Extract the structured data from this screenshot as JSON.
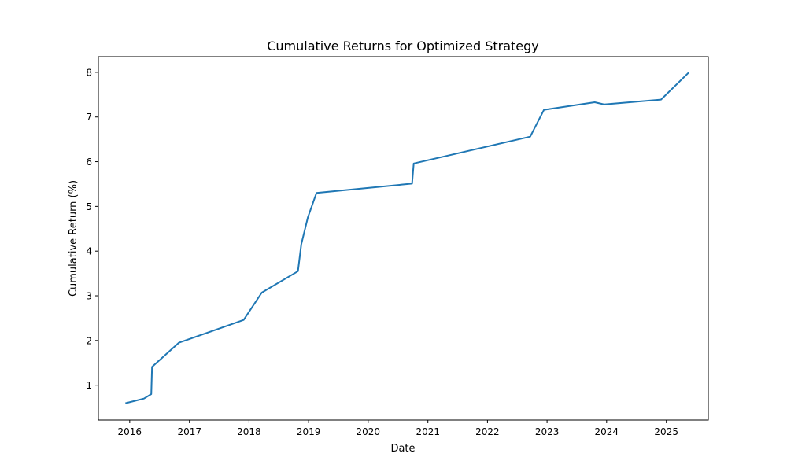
{
  "chart_data": {
    "type": "line",
    "title": "Cumulative Returns for Optimized Strategy",
    "xlabel": "Date",
    "ylabel": "Cumulative Return (%)",
    "xlim": [
      "2015-06-23",
      "2025-09-15"
    ],
    "ylim": [
      0.22,
      8.35
    ],
    "x_ticks": [
      "2016",
      "2017",
      "2018",
      "2019",
      "2020",
      "2021",
      "2022",
      "2023",
      "2024",
      "2025"
    ],
    "y_ticks": [
      1,
      2,
      3,
      4,
      5,
      6,
      7,
      8
    ],
    "grid": false,
    "legend": "none",
    "series": [
      {
        "color": "#1f77b4",
        "x": [
          "2015-12-10",
          "2016-03-28",
          "2016-05-12",
          "2016-05-17",
          "2016-10-28",
          "2017-11-29",
          "2018-03-20",
          "2018-10-28",
          "2018-11-17",
          "2018-12-27",
          "2019-02-18",
          "2020-09-26",
          "2020-10-06",
          "2022-09-20",
          "2022-12-13",
          "2023-10-20",
          "2023-12-18",
          "2024-11-29",
          "2025-05-14"
        ],
        "y": [
          0.6,
          0.7,
          0.8,
          1.41,
          1.95,
          2.46,
          3.07,
          3.55,
          4.15,
          4.75,
          5.3,
          5.51,
          5.96,
          6.56,
          7.16,
          7.33,
          7.28,
          7.39,
          7.98
        ]
      }
    ]
  }
}
